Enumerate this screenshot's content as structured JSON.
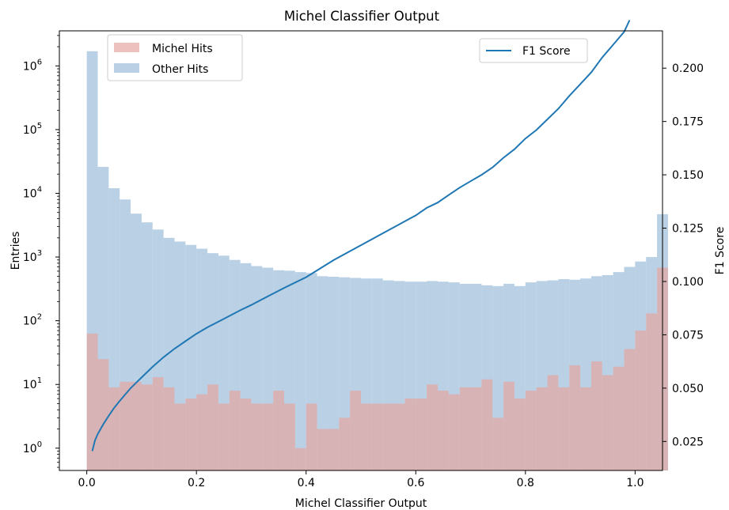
{
  "chart_data": {
    "type": "bar",
    "title": "Michel Classifier Output",
    "xlabel": "Michel Classifier Output",
    "ylabel": "Entries",
    "y2label": "F1 Score",
    "xlim": [
      -0.05,
      1.05
    ],
    "ylim_log10": [
      -0.35,
      6.55
    ],
    "y2lim": [
      0.0114,
      0.2175
    ],
    "yscale": "log",
    "grid": false,
    "x_ticks": [
      "0.0",
      "0.2",
      "0.4",
      "0.6",
      "0.8",
      "1.0"
    ],
    "y_ticks": [
      {
        "base": "10",
        "exp": "0"
      },
      {
        "base": "10",
        "exp": "1"
      },
      {
        "base": "10",
        "exp": "2"
      },
      {
        "base": "10",
        "exp": "3"
      },
      {
        "base": "10",
        "exp": "4"
      },
      {
        "base": "10",
        "exp": "5"
      },
      {
        "base": "10",
        "exp": "6"
      }
    ],
    "y2_ticks": [
      "0.025",
      "0.050",
      "0.075",
      "0.100",
      "0.125",
      "0.150",
      "0.175",
      "0.200"
    ],
    "bin_width": 0.02,
    "bin_start": 0.0,
    "series": [
      {
        "name": "Michel Hits",
        "color": "#e6a6a3",
        "values": [
          63,
          25,
          9,
          11,
          11,
          10,
          13,
          9,
          5,
          6,
          7,
          10,
          5,
          8,
          6,
          5,
          5,
          8,
          5,
          1,
          5,
          2,
          2,
          3,
          8,
          5,
          5,
          5,
          5,
          6,
          6,
          10,
          8,
          7,
          9,
          9,
          12,
          3,
          11,
          6,
          8,
          9,
          14,
          9,
          20,
          9,
          23,
          14,
          19,
          36,
          70,
          130,
          680
        ]
      },
      {
        "name": "Other Hits",
        "color": "#a8c4de",
        "values": [
          1700000,
          26000,
          12000,
          8000,
          4800,
          3500,
          2700,
          2000,
          1750,
          1550,
          1350,
          1150,
          1050,
          900,
          800,
          720,
          680,
          620,
          610,
          580,
          560,
          500,
          490,
          480,
          470,
          460,
          460,
          430,
          420,
          410,
          410,
          420,
          410,
          400,
          380,
          380,
          360,
          350,
          380,
          350,
          400,
          420,
          430,
          450,
          440,
          460,
          500,
          520,
          580,
          700,
          850,
          1000,
          4700
        ]
      },
      {
        "name": "F1 Score",
        "type": "line",
        "axis": "right",
        "color": "#1f77b4",
        "x": [
          0.01,
          0.015,
          0.02,
          0.03,
          0.04,
          0.05,
          0.06,
          0.07,
          0.08,
          0.09,
          0.1,
          0.12,
          0.14,
          0.16,
          0.18,
          0.2,
          0.22,
          0.25,
          0.28,
          0.3,
          0.33,
          0.36,
          0.4,
          0.45,
          0.5,
          0.55,
          0.6,
          0.62,
          0.64,
          0.66,
          0.68,
          0.7,
          0.72,
          0.74,
          0.76,
          0.78,
          0.8,
          0.82,
          0.84,
          0.86,
          0.88,
          0.9,
          0.92,
          0.94,
          0.96,
          0.97,
          0.98,
          0.99
        ],
        "y": [
          0.0205,
          0.0255,
          0.0285,
          0.033,
          0.037,
          0.0408,
          0.044,
          0.047,
          0.05,
          0.0525,
          0.055,
          0.06,
          0.0645,
          0.0685,
          0.072,
          0.0755,
          0.0785,
          0.0825,
          0.0865,
          0.089,
          0.093,
          0.097,
          0.102,
          0.11,
          0.117,
          0.124,
          0.131,
          0.1345,
          0.137,
          0.1405,
          0.144,
          0.147,
          0.15,
          0.1535,
          0.158,
          0.162,
          0.167,
          0.171,
          0.176,
          0.181,
          0.187,
          0.1925,
          0.198,
          0.205,
          0.211,
          0.214,
          0.217,
          0.2225
        ]
      }
    ],
    "legend": {
      "left_placement": "top-left",
      "right_placement": "top-right",
      "left_entries": [
        "Michel Hits",
        "Other Hits"
      ],
      "right_entries": [
        "F1 Score"
      ]
    }
  }
}
